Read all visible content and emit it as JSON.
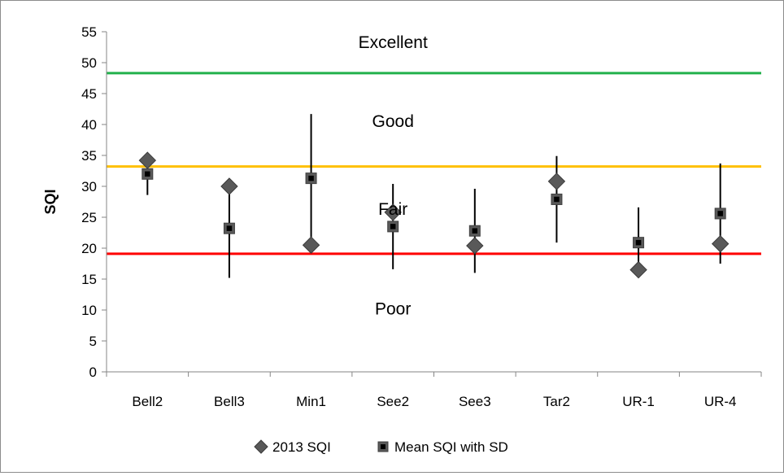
{
  "chart_data": {
    "type": "scatter",
    "ylabel": "SQI",
    "xlabel": "",
    "ylim": [
      0,
      55
    ],
    "yticks": [
      0,
      5,
      10,
      15,
      20,
      25,
      30,
      35,
      40,
      45,
      50,
      55
    ],
    "categories": [
      "Bell2",
      "Bell3",
      "Min1",
      "See2",
      "See3",
      "Tar2",
      "UR-1",
      "UR-4"
    ],
    "legend_position": "bottom",
    "grid": false,
    "series": [
      {
        "name": "2013 SQI",
        "marker": "diamond",
        "color": "#595959",
        "values": [
          34.2,
          30.0,
          20.5,
          25.8,
          20.4,
          30.8,
          16.5,
          20.7
        ]
      },
      {
        "name": "Mean SQI with SD",
        "marker": "square",
        "color": "#000000",
        "values": [
          32.0,
          23.2,
          31.3,
          23.5,
          22.8,
          27.9,
          20.9,
          25.6
        ],
        "sd": [
          3.4,
          8.0,
          10.4,
          6.9,
          6.8,
          7.0,
          5.7,
          8.1
        ]
      }
    ],
    "thresholds": [
      {
        "value": 48.3,
        "color": "#22b14c"
      },
      {
        "value": 33.2,
        "color": "#ffc000"
      },
      {
        "value": 19.1,
        "color": "#ff0000"
      }
    ],
    "zone_labels": [
      {
        "text": "Excellent",
        "y": 53.3,
        "category_pos": 3.5
      },
      {
        "text": "Good",
        "y": 40.5,
        "category_pos": 3.5
      },
      {
        "text": "Fair",
        "y": 26.3,
        "category_pos": 3.5
      },
      {
        "text": "Poor",
        "y": 10.2,
        "category_pos": 3.5
      }
    ]
  }
}
